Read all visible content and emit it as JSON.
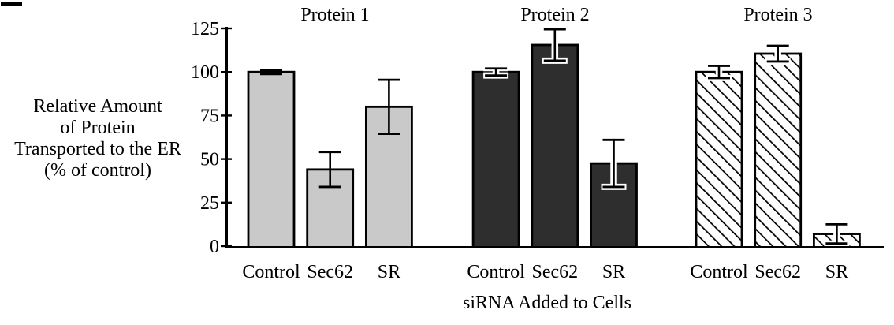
{
  "chart_data": {
    "type": "bar",
    "title": "",
    "ylabel_lines": [
      "Relative Amount",
      "of Protein",
      "Transported to the ER",
      "(% of control)"
    ],
    "xlabel": "siRNA Added to Cells",
    "categories": [
      "Control",
      "Sec62",
      "SR"
    ],
    "yticks": [
      0,
      25,
      50,
      75,
      100,
      125
    ],
    "ylim": [
      0,
      125
    ],
    "grid": false,
    "legend": "none; group titles above each bar cluster",
    "series": [
      {
        "name": "Protein 1",
        "style": "light",
        "fill": "#c9c9c9",
        "values": [
          100,
          44,
          80
        ],
        "errors": [
          1.2,
          10,
          15.5
        ]
      },
      {
        "name": "Protein 2",
        "style": "dark",
        "fill": "#2e2e2e",
        "values": [
          100,
          115.5,
          47.5
        ],
        "errors": [
          2,
          9,
          13.5
        ]
      },
      {
        "name": "Protein 3",
        "style": "hatched",
        "fill": "diagonal-hatch",
        "values": [
          100,
          110.5,
          7
        ],
        "errors": [
          3.5,
          4.5,
          5.5
        ]
      }
    ],
    "colors": {
      "axis": "#000000",
      "text": "#000000",
      "background": "#ffffff",
      "light_bar": "#c9c9c9",
      "dark_bar": "#2e2e2e",
      "hatch_line": "#000000",
      "hatch_bg": "#ffffff",
      "error_casing": "#ffffff"
    }
  }
}
